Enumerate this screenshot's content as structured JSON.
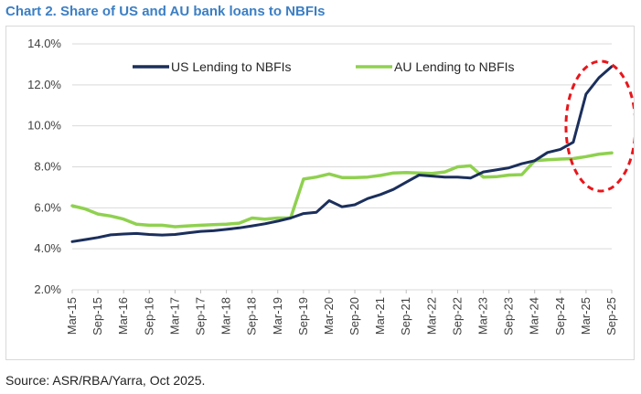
{
  "title": "Chart 2. Share of US and AU bank loans to NBFIs",
  "source": "Source: ASR/RBA/Yarra, Oct 2025.",
  "colors": {
    "us": "#1b2f5c",
    "au": "#8fd14f",
    "grid": "#d9d9d9",
    "highlight": "#e8161b",
    "title": "#3b7fc4"
  },
  "chart_data": {
    "type": "line",
    "y_tick_labels": [
      "2.0%",
      "4.0%",
      "6.0%",
      "8.0%",
      "10.0%",
      "12.0%",
      "14.0%"
    ],
    "ylim": [
      2,
      14
    ],
    "x_tick_labels": [
      "Mar-15",
      "Sep-15",
      "Mar-16",
      "Sep-16",
      "Mar-17",
      "Sep-17",
      "Mar-18",
      "Sep-18",
      "Mar-19",
      "Sep-19",
      "Mar-20",
      "Sep-20",
      "Mar-21",
      "Sep-21",
      "Mar-22",
      "Sep-22",
      "Mar-23",
      "Sep-23",
      "Mar-24",
      "Sep-24",
      "Mar-25",
      "Sep-25"
    ],
    "x": [
      "Mar-15",
      "Jun-15",
      "Sep-15",
      "Dec-15",
      "Mar-16",
      "Jun-16",
      "Sep-16",
      "Dec-16",
      "Mar-17",
      "Jun-17",
      "Sep-17",
      "Dec-17",
      "Mar-18",
      "Jun-18",
      "Sep-18",
      "Dec-18",
      "Mar-19",
      "Jun-19",
      "Sep-19",
      "Dec-19",
      "Mar-20",
      "Jun-20",
      "Sep-20",
      "Dec-20",
      "Mar-21",
      "Jun-21",
      "Sep-21",
      "Dec-21",
      "Mar-22",
      "Jun-22",
      "Sep-22",
      "Dec-22",
      "Mar-23",
      "Jun-23",
      "Sep-23",
      "Dec-23",
      "Mar-24",
      "Jun-24",
      "Sep-24",
      "Dec-24",
      "Mar-25",
      "Jun-25",
      "Sep-25"
    ],
    "series": [
      {
        "name": "US Lending to NBFIs",
        "color": "#1b2f5c",
        "values": [
          4.35,
          4.45,
          4.55,
          4.68,
          4.72,
          4.75,
          4.7,
          4.67,
          4.7,
          4.78,
          4.85,
          4.88,
          4.95,
          5.02,
          5.12,
          5.22,
          5.35,
          5.5,
          5.72,
          5.78,
          6.35,
          6.05,
          6.15,
          6.45,
          6.65,
          6.9,
          7.25,
          7.6,
          7.55,
          7.5,
          7.5,
          7.45,
          7.75,
          7.85,
          7.95,
          8.15,
          8.3,
          8.7,
          8.85,
          9.2,
          11.55,
          12.35,
          12.9
        ]
      },
      {
        "name": "AU Lending to NBFIs",
        "color": "#8fd14f",
        "values": [
          6.1,
          5.95,
          5.7,
          5.6,
          5.45,
          5.2,
          5.15,
          5.15,
          5.08,
          5.12,
          5.15,
          5.18,
          5.2,
          5.25,
          5.5,
          5.45,
          5.5,
          5.5,
          7.4,
          7.5,
          7.65,
          7.48,
          7.48,
          7.5,
          7.58,
          7.7,
          7.72,
          7.7,
          7.68,
          7.75,
          8.0,
          8.05,
          7.5,
          7.52,
          7.6,
          7.62,
          8.3,
          8.35,
          8.38,
          8.4,
          8.5,
          8.62,
          8.68
        ]
      }
    ],
    "legend": "top",
    "grid": "horizontal",
    "annotation": "red dashed ellipse around Mar-25 to Sep-25"
  }
}
